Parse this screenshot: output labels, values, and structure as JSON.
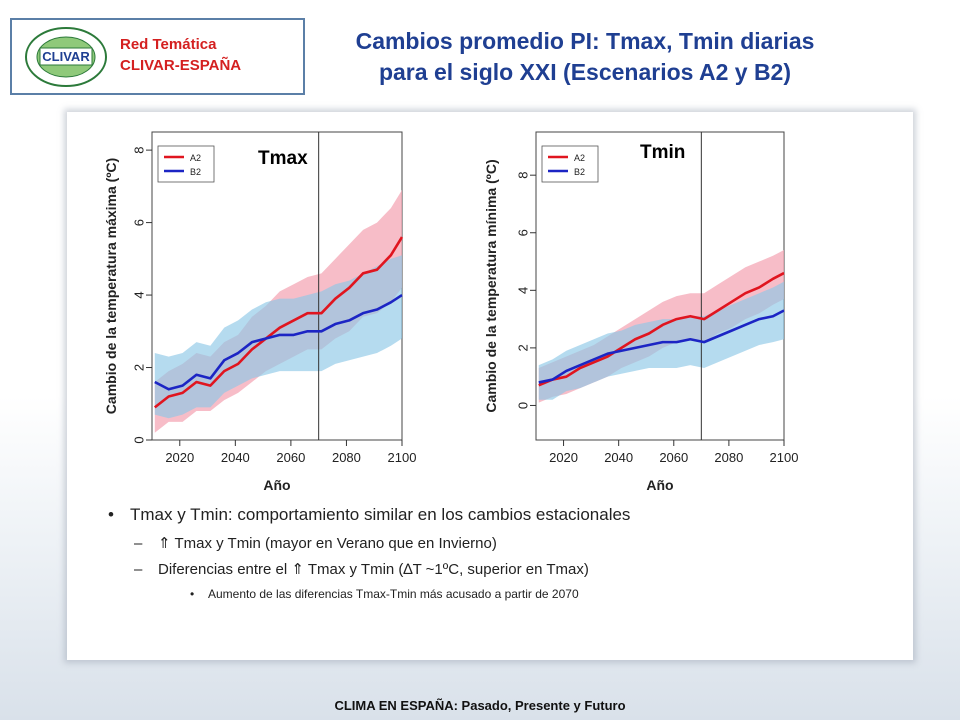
{
  "header": {
    "network_line1": "Red Temática",
    "network_line2": "CLIVAR-ESPAÑA",
    "logo_word": "CLIVAR",
    "title_line1": "Cambios promedio PI: Tmax, Tmin diarias",
    "title_line2": "para el siglo XXI (Escenarios A2 y B2)"
  },
  "colors": {
    "a2": "#e0151f",
    "b2": "#1c25c4",
    "a2_band": "#f4a7b5",
    "b2_band": "#8ec8e6",
    "title": "#1f3f92",
    "network_text": "#d42020"
  },
  "chart_data": [
    {
      "type": "line",
      "panel_label": "Tmax",
      "xlabel": "Año",
      "ylabel": "Cambio de la temperatura máxima (ºC)",
      "xlim": [
        2010,
        2100
      ],
      "ylim": [
        0,
        8.5
      ],
      "x_ticks": [
        2020,
        2040,
        2060,
        2080,
        2100
      ],
      "y_ticks": [
        0,
        2,
        4,
        6,
        8
      ],
      "vline_x": 2070,
      "legend_position": "top-left",
      "x": [
        2011,
        2016,
        2021,
        2026,
        2031,
        2036,
        2041,
        2046,
        2051,
        2056,
        2061,
        2066,
        2071,
        2076,
        2081,
        2086,
        2091,
        2096,
        2100
      ],
      "series": [
        {
          "name": "A2",
          "values": [
            0.9,
            1.2,
            1.3,
            1.6,
            1.5,
            1.9,
            2.1,
            2.5,
            2.8,
            3.1,
            3.3,
            3.5,
            3.5,
            3.9,
            4.2,
            4.6,
            4.7,
            5.1,
            5.6
          ],
          "band_low": [
            0.2,
            0.5,
            0.5,
            0.8,
            0.8,
            1.1,
            1.3,
            1.6,
            1.9,
            2.1,
            2.3,
            2.5,
            2.5,
            2.8,
            3.0,
            3.4,
            3.5,
            3.8,
            4.2
          ],
          "band_high": [
            1.6,
            1.9,
            2.1,
            2.4,
            2.3,
            2.7,
            2.9,
            3.4,
            3.7,
            4.1,
            4.3,
            4.5,
            4.6,
            5.0,
            5.4,
            5.8,
            6.0,
            6.4,
            6.9
          ]
        },
        {
          "name": "B2",
          "values": [
            1.6,
            1.4,
            1.5,
            1.8,
            1.7,
            2.2,
            2.4,
            2.7,
            2.8,
            2.9,
            2.9,
            3.0,
            3.0,
            3.2,
            3.3,
            3.5,
            3.6,
            3.8,
            4.0
          ],
          "band_low": [
            0.7,
            0.6,
            0.7,
            0.9,
            0.9,
            1.3,
            1.5,
            1.7,
            1.8,
            1.9,
            1.9,
            1.9,
            1.9,
            2.1,
            2.2,
            2.3,
            2.4,
            2.6,
            2.8
          ],
          "band_high": [
            2.4,
            2.3,
            2.4,
            2.7,
            2.6,
            3.1,
            3.3,
            3.6,
            3.8,
            3.9,
            3.9,
            4.0,
            4.1,
            4.3,
            4.4,
            4.6,
            4.8,
            5.0,
            5.1
          ]
        }
      ]
    },
    {
      "type": "line",
      "panel_label": "Tmin",
      "xlabel": "Año",
      "ylabel": "Cambio de la temperatura mínima (ºC)",
      "xlim": [
        2010,
        2100
      ],
      "ylim": [
        -1.2,
        9.5
      ],
      "x_ticks": [
        2020,
        2040,
        2060,
        2080,
        2100
      ],
      "y_ticks": [
        0,
        2,
        4,
        6,
        8
      ],
      "vline_x": 2070,
      "legend_position": "top-left",
      "x": [
        2011,
        2016,
        2021,
        2026,
        2031,
        2036,
        2041,
        2046,
        2051,
        2056,
        2061,
        2066,
        2071,
        2076,
        2081,
        2086,
        2091,
        2096,
        2100
      ],
      "series": [
        {
          "name": "A2",
          "values": [
            0.7,
            0.9,
            1.0,
            1.3,
            1.5,
            1.7,
            2.0,
            2.3,
            2.5,
            2.8,
            3.0,
            3.1,
            3.0,
            3.3,
            3.6,
            3.9,
            4.1,
            4.4,
            4.6
          ],
          "band_low": [
            0.1,
            0.3,
            0.4,
            0.6,
            0.8,
            1.0,
            1.3,
            1.5,
            1.7,
            2.0,
            2.2,
            2.3,
            2.2,
            2.5,
            2.7,
            3.0,
            3.2,
            3.5,
            3.7
          ],
          "band_high": [
            1.3,
            1.5,
            1.7,
            1.9,
            2.1,
            2.4,
            2.7,
            3.0,
            3.3,
            3.6,
            3.8,
            3.9,
            3.9,
            4.2,
            4.5,
            4.8,
            5.0,
            5.2,
            5.4
          ]
        },
        {
          "name": "B2",
          "values": [
            0.8,
            0.9,
            1.2,
            1.4,
            1.6,
            1.8,
            1.9,
            2.0,
            2.1,
            2.2,
            2.2,
            2.3,
            2.2,
            2.4,
            2.6,
            2.8,
            3.0,
            3.1,
            3.3
          ],
          "band_low": [
            0.2,
            0.2,
            0.5,
            0.6,
            0.8,
            1.0,
            1.1,
            1.2,
            1.3,
            1.3,
            1.3,
            1.4,
            1.3,
            1.5,
            1.7,
            1.9,
            2.1,
            2.2,
            2.3
          ],
          "band_high": [
            1.4,
            1.6,
            1.9,
            2.1,
            2.3,
            2.5,
            2.6,
            2.8,
            2.9,
            3.0,
            3.0,
            3.1,
            3.1,
            3.3,
            3.5,
            3.7,
            3.9,
            4.1,
            4.3
          ]
        }
      ]
    }
  ],
  "bullets": {
    "b1": "Tmax y Tmin: comportamiento similar en los cambios estacionales",
    "b2": "⇑ Tmax y Tmin (mayor en Verano que en Invierno)",
    "b3": "Diferencias entre el ⇑ Tmax y Tmin (∆T  ~1ºC, superior en Tmax)",
    "b4": "Aumento de las diferencias Tmax-Tmin más acusado a partir de 2070",
    "bullet_char": "•",
    "dash_char": "–"
  },
  "footer": "CLIMA EN ESPAÑA: Pasado, Presente y Futuro"
}
